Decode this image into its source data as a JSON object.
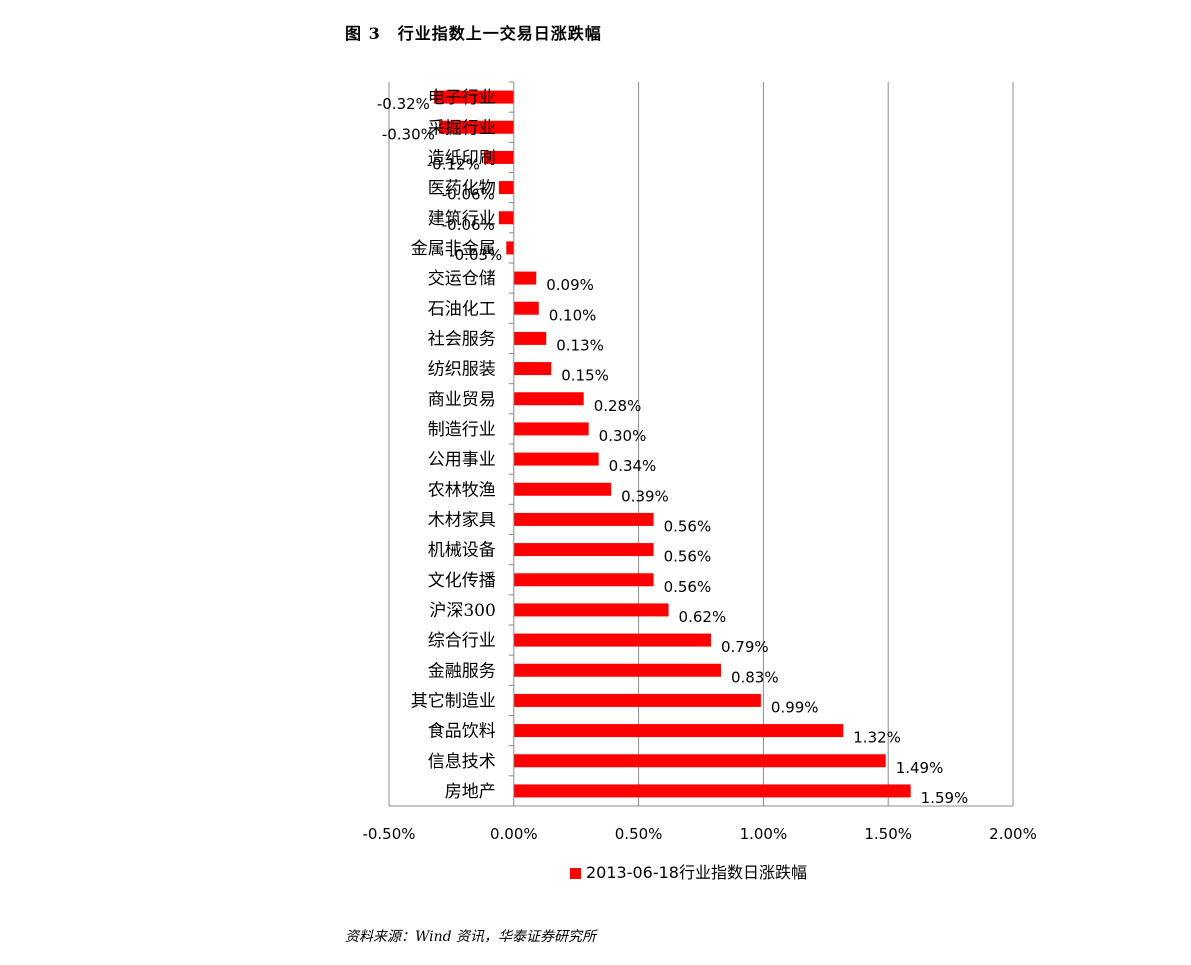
{
  "figure": {
    "title": "图 3　行业指数上一交易日涨跌幅",
    "source": "资料来源：Wind 资讯，华泰证券研究所"
  },
  "colors": {
    "bar": "#ff0000",
    "grid": "#8c8c8c",
    "axis": "#8c8c8c"
  },
  "chart_data": {
    "type": "bar",
    "orientation": "horizontal",
    "title": "图 3　行业指数上一交易日涨跌幅",
    "xlim": [
      -0.5,
      2.0
    ],
    "x_ticks": [
      -0.5,
      0.0,
      0.5,
      1.0,
      1.5,
      2.0
    ],
    "x_tick_labels": [
      "-0.50%",
      "0.00%",
      "0.50%",
      "1.00%",
      "1.50%",
      "2.00%"
    ],
    "grid": "vertical",
    "legend_position": "bottom",
    "categories": [
      "电子行业",
      "采掘行业",
      "造纸印刷",
      "医药化物",
      "建筑行业",
      "金属非金属",
      "交运仓储",
      "石油化工",
      "社会服务",
      "纺织服装",
      "商业贸易",
      "制造行业",
      "公用事业",
      "农林牧渔",
      "木材家具",
      "机械设备",
      "文化传播",
      "沪深300",
      "综合行业",
      "金融服务",
      "其它制造业",
      "食品饮料",
      "信息技术",
      "房地产"
    ],
    "series": [
      {
        "name": "2013-06-18行业指数日涨跌幅",
        "values": [
          -0.32,
          -0.3,
          -0.12,
          -0.06,
          -0.06,
          -0.03,
          0.09,
          0.1,
          0.13,
          0.15,
          0.28,
          0.3,
          0.34,
          0.39,
          0.56,
          0.56,
          0.56,
          0.62,
          0.79,
          0.83,
          0.99,
          1.32,
          1.49,
          1.59
        ],
        "labels": [
          "-0.32%",
          "-0.30%",
          "-0.12%",
          "-0.06%",
          "-0.06%",
          "-0.03%",
          "0.09%",
          "0.10%",
          "0.13%",
          "0.15%",
          "0.28%",
          "0.30%",
          "0.34%",
          "0.39%",
          "0.56%",
          "0.56%",
          "0.56%",
          "0.62%",
          "0.79%",
          "0.83%",
          "0.99%",
          "1.32%",
          "1.49%",
          "1.59%"
        ]
      }
    ]
  }
}
